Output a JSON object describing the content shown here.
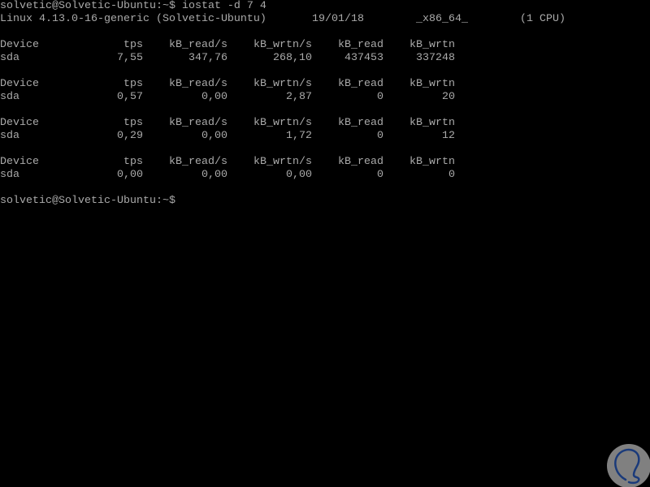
{
  "terminal": {
    "command_line": "solvetic@Solvetic-Ubuntu:~$ iostat -d 7 4",
    "sysinfo": {
      "kernel": "Linux 4.13.0-16-generic (Solvetic-Ubuntu)",
      "date": "19/01/18",
      "arch": "_x86_64_",
      "cpus": "(1 CPU)"
    },
    "blocks": [
      {
        "header": [
          "Device",
          "tps",
          "kB_read/s",
          "kB_wrtn/s",
          "kB_read",
          "kB_wrtn"
        ],
        "row": [
          "sda",
          "7,55",
          "347,76",
          "268,10",
          "437453",
          "337248"
        ]
      },
      {
        "header": [
          "Device",
          "tps",
          "kB_read/s",
          "kB_wrtn/s",
          "kB_read",
          "kB_wrtn"
        ],
        "row": [
          "sda",
          "0,57",
          "0,00",
          "2,87",
          "0",
          "20"
        ]
      },
      {
        "header": [
          "Device",
          "tps",
          "kB_read/s",
          "kB_wrtn/s",
          "kB_read",
          "kB_wrtn"
        ],
        "row": [
          "sda",
          "0,29",
          "0,00",
          "1,72",
          "0",
          "12"
        ]
      },
      {
        "header": [
          "Device",
          "tps",
          "kB_read/s",
          "kB_wrtn/s",
          "kB_read",
          "kB_wrtn"
        ],
        "row": [
          "sda",
          "0,00",
          "0,00",
          "0,00",
          "0",
          "0"
        ]
      }
    ],
    "prompt": "solvetic@Solvetic-Ubuntu:~$"
  },
  "colors": {
    "background": "#000000",
    "text": "#aaaaaa",
    "logo_circle": "#808080",
    "logo_stroke": "#1a3a7a"
  },
  "logo": {
    "icon": "solvetic-logo-icon"
  }
}
